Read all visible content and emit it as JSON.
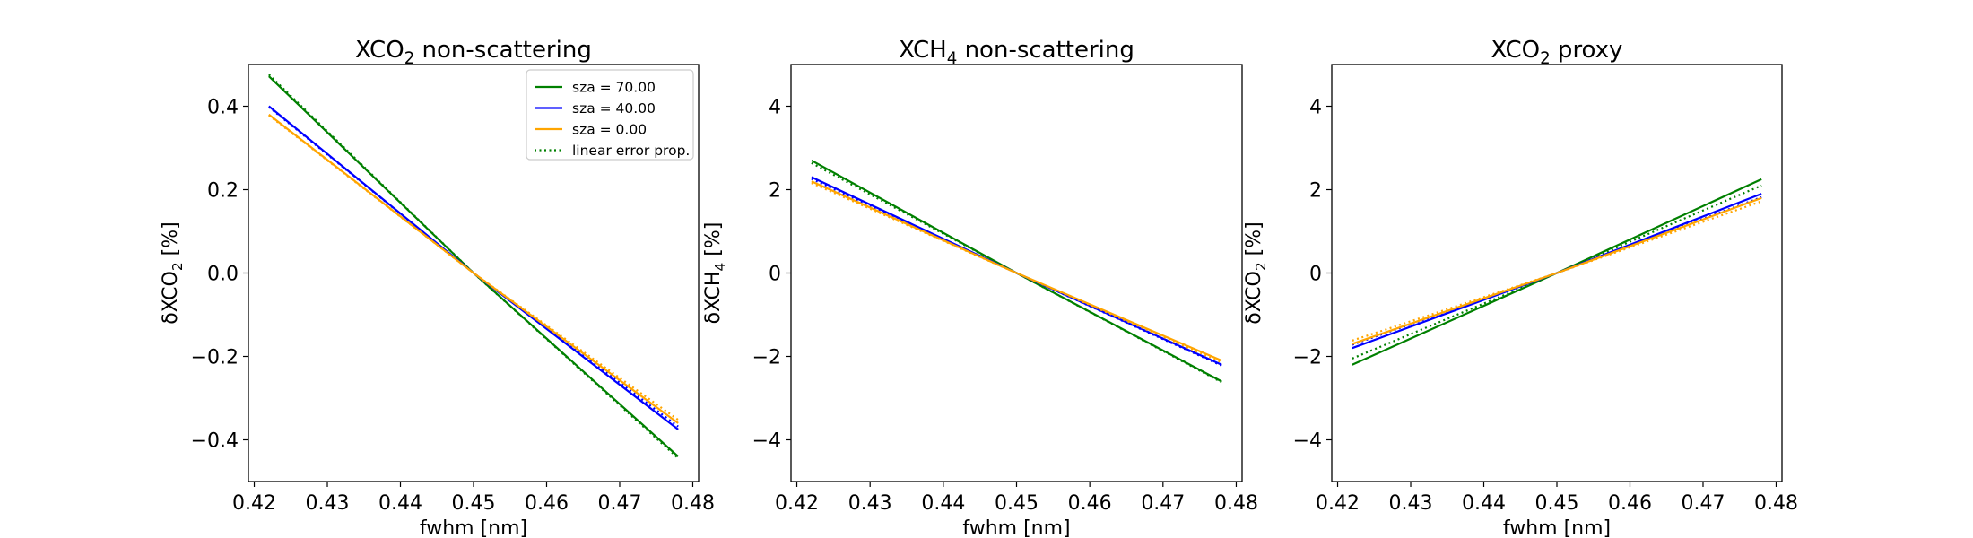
{
  "chart_data": [
    {
      "type": "line",
      "title": "XCO2 non-scattering",
      "title_main": "XCO",
      "title_sub": "2",
      "title_rest": " non-scattering",
      "xlabel": "fwhm [nm]",
      "ylabel": "δXCO2 [%]",
      "ylabel_main": "δXCO",
      "ylabel_sub": "2",
      "ylabel_rest": " [%]",
      "xlim": [
        0.4192,
        0.4808
      ],
      "ylim": [
        -0.5,
        0.5
      ],
      "xticks": [
        0.42,
        0.43,
        0.44,
        0.45,
        0.46,
        0.47,
        0.48
      ],
      "xtick_labels": [
        "0.42",
        "0.43",
        "0.44",
        "0.45",
        "0.46",
        "0.47",
        "0.48"
      ],
      "yticks": [
        -0.4,
        -0.2,
        0.0,
        0.2,
        0.4
      ],
      "ytick_labels": [
        "−0.4",
        "−0.2",
        "0.0",
        "0.2",
        "0.4"
      ],
      "grid": false,
      "legend": {
        "placement": "upper right",
        "entries": [
          {
            "label": "sza = 70.00",
            "color": "#008000",
            "style": "solid"
          },
          {
            "label": "sza = 40.00",
            "color": "#0000ff",
            "style": "solid"
          },
          {
            "label": "sza = 0.00",
            "color": "#ffa500",
            "style": "solid"
          },
          {
            "label": "linear error prop.",
            "color": "#008000",
            "style": "dotted"
          }
        ]
      },
      "series": [
        {
          "name": "sza = 70.00",
          "color": "#008000",
          "style": "solid",
          "x": [
            0.422,
            0.45,
            0.478
          ],
          "y": [
            0.472,
            0.0,
            -0.44
          ]
        },
        {
          "name": "",
          "color": "#008000",
          "style": "dotted",
          "x": [
            0.422,
            0.45,
            0.478
          ],
          "y": [
            0.476,
            0.0,
            -0.444
          ]
        },
        {
          "name": "sza = 40.00",
          "color": "#0000ff",
          "style": "solid",
          "x": [
            0.422,
            0.45,
            0.478
          ],
          "y": [
            0.4,
            0.0,
            -0.375
          ]
        },
        {
          "name": "",
          "color": "#0000ff",
          "style": "dotted",
          "x": [
            0.422,
            0.45,
            0.478
          ],
          "y": [
            0.398,
            0.0,
            -0.368
          ]
        },
        {
          "name": "sza = 0.00",
          "color": "#ffa500",
          "style": "solid",
          "x": [
            0.422,
            0.45,
            0.478
          ],
          "y": [
            0.38,
            0.0,
            -0.36
          ]
        },
        {
          "name": "",
          "color": "#ffa500",
          "style": "dotted",
          "x": [
            0.422,
            0.45,
            0.478
          ],
          "y": [
            0.378,
            0.0,
            -0.352
          ]
        }
      ]
    },
    {
      "type": "line",
      "title": "XCH4 non-scattering",
      "title_main": "XCH",
      "title_sub": "4",
      "title_rest": " non-scattering",
      "xlabel": "fwhm [nm]",
      "ylabel": "δXCH4 [%]",
      "ylabel_main": "δXCH",
      "ylabel_sub": "4",
      "ylabel_rest": " [%]",
      "xlim": [
        0.4192,
        0.4808
      ],
      "ylim": [
        -5,
        5
      ],
      "xticks": [
        0.42,
        0.43,
        0.44,
        0.45,
        0.46,
        0.47,
        0.48
      ],
      "xtick_labels": [
        "0.42",
        "0.43",
        "0.44",
        "0.45",
        "0.46",
        "0.47",
        "0.48"
      ],
      "yticks": [
        -4,
        -2,
        0,
        2,
        4
      ],
      "ytick_labels": [
        "−4",
        "−2",
        "0",
        "2",
        "4"
      ],
      "grid": false,
      "series": [
        {
          "name": "sza = 70.00",
          "color": "#008000",
          "style": "solid",
          "x": [
            0.422,
            0.45,
            0.478
          ],
          "y": [
            2.7,
            0.0,
            -2.6
          ]
        },
        {
          "name": "",
          "color": "#008000",
          "style": "dotted",
          "x": [
            0.422,
            0.45,
            0.478
          ],
          "y": [
            2.64,
            0.0,
            -2.62
          ]
        },
        {
          "name": "sza = 40.00",
          "color": "#0000ff",
          "style": "solid",
          "x": [
            0.422,
            0.45,
            0.478
          ],
          "y": [
            2.3,
            0.0,
            -2.2
          ]
        },
        {
          "name": "",
          "color": "#0000ff",
          "style": "dotted",
          "x": [
            0.422,
            0.45,
            0.478
          ],
          "y": [
            2.26,
            0.0,
            -2.22
          ]
        },
        {
          "name": "sza = 0.00",
          "color": "#ffa500",
          "style": "solid",
          "x": [
            0.422,
            0.45,
            0.478
          ],
          "y": [
            2.2,
            0.0,
            -2.1
          ]
        },
        {
          "name": "",
          "color": "#ffa500",
          "style": "dotted",
          "x": [
            0.422,
            0.45,
            0.478
          ],
          "y": [
            2.16,
            0.0,
            -2.14
          ]
        }
      ]
    },
    {
      "type": "line",
      "title": "XCO2 proxy",
      "title_main": "XCO",
      "title_sub": "2",
      "title_rest": " proxy",
      "xlabel": "fwhm [nm]",
      "ylabel": "δXCO2 [%]",
      "ylabel_main": "δXCO",
      "ylabel_sub": "2",
      "ylabel_rest": " [%]",
      "xlim": [
        0.4192,
        0.4808
      ],
      "ylim": [
        -5,
        5
      ],
      "xticks": [
        0.42,
        0.43,
        0.44,
        0.45,
        0.46,
        0.47,
        0.48
      ],
      "xtick_labels": [
        "0.42",
        "0.43",
        "0.44",
        "0.45",
        "0.46",
        "0.47",
        "0.48"
      ],
      "yticks": [
        -4,
        -2,
        0,
        2,
        4
      ],
      "ytick_labels": [
        "−4",
        "−2",
        "0",
        "2",
        "4"
      ],
      "grid": false,
      "series": [
        {
          "name": "sza = 70.00",
          "color": "#008000",
          "style": "solid",
          "x": [
            0.422,
            0.45,
            0.478
          ],
          "y": [
            -2.2,
            0.0,
            2.25
          ]
        },
        {
          "name": "",
          "color": "#008000",
          "style": "dotted",
          "x": [
            0.422,
            0.45,
            0.478
          ],
          "y": [
            -2.05,
            0.0,
            2.1
          ]
        },
        {
          "name": "sza = 40.00",
          "color": "#0000ff",
          "style": "solid",
          "x": [
            0.422,
            0.45,
            0.478
          ],
          "y": [
            -1.8,
            0.0,
            1.9
          ]
        },
        {
          "name": "",
          "color": "#0000ff",
          "style": "dotted",
          "x": [
            0.422,
            0.45,
            0.478
          ],
          "y": [
            -1.72,
            0.0,
            1.82
          ]
        },
        {
          "name": "sza = 0.00",
          "color": "#ffa500",
          "style": "solid",
          "x": [
            0.422,
            0.45,
            0.478
          ],
          "y": [
            -1.7,
            0.0,
            1.8
          ]
        },
        {
          "name": "",
          "color": "#ffa500",
          "style": "dotted",
          "x": [
            0.422,
            0.45,
            0.478
          ],
          "y": [
            -1.62,
            0.0,
            1.72
          ]
        }
      ]
    }
  ]
}
